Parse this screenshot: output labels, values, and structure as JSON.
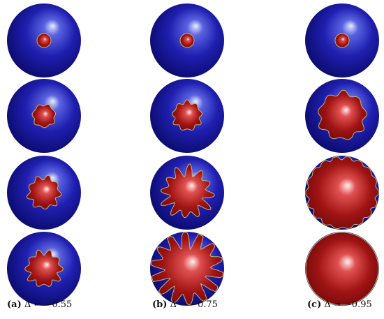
{
  "panels": [
    {
      "label": "(a)",
      "caption": "Δ = −0.55"
    },
    {
      "label": "(b)",
      "caption": "Δ = −0.75"
    },
    {
      "label": "(c)",
      "caption": "Δ = −0.95"
    }
  ]
}
